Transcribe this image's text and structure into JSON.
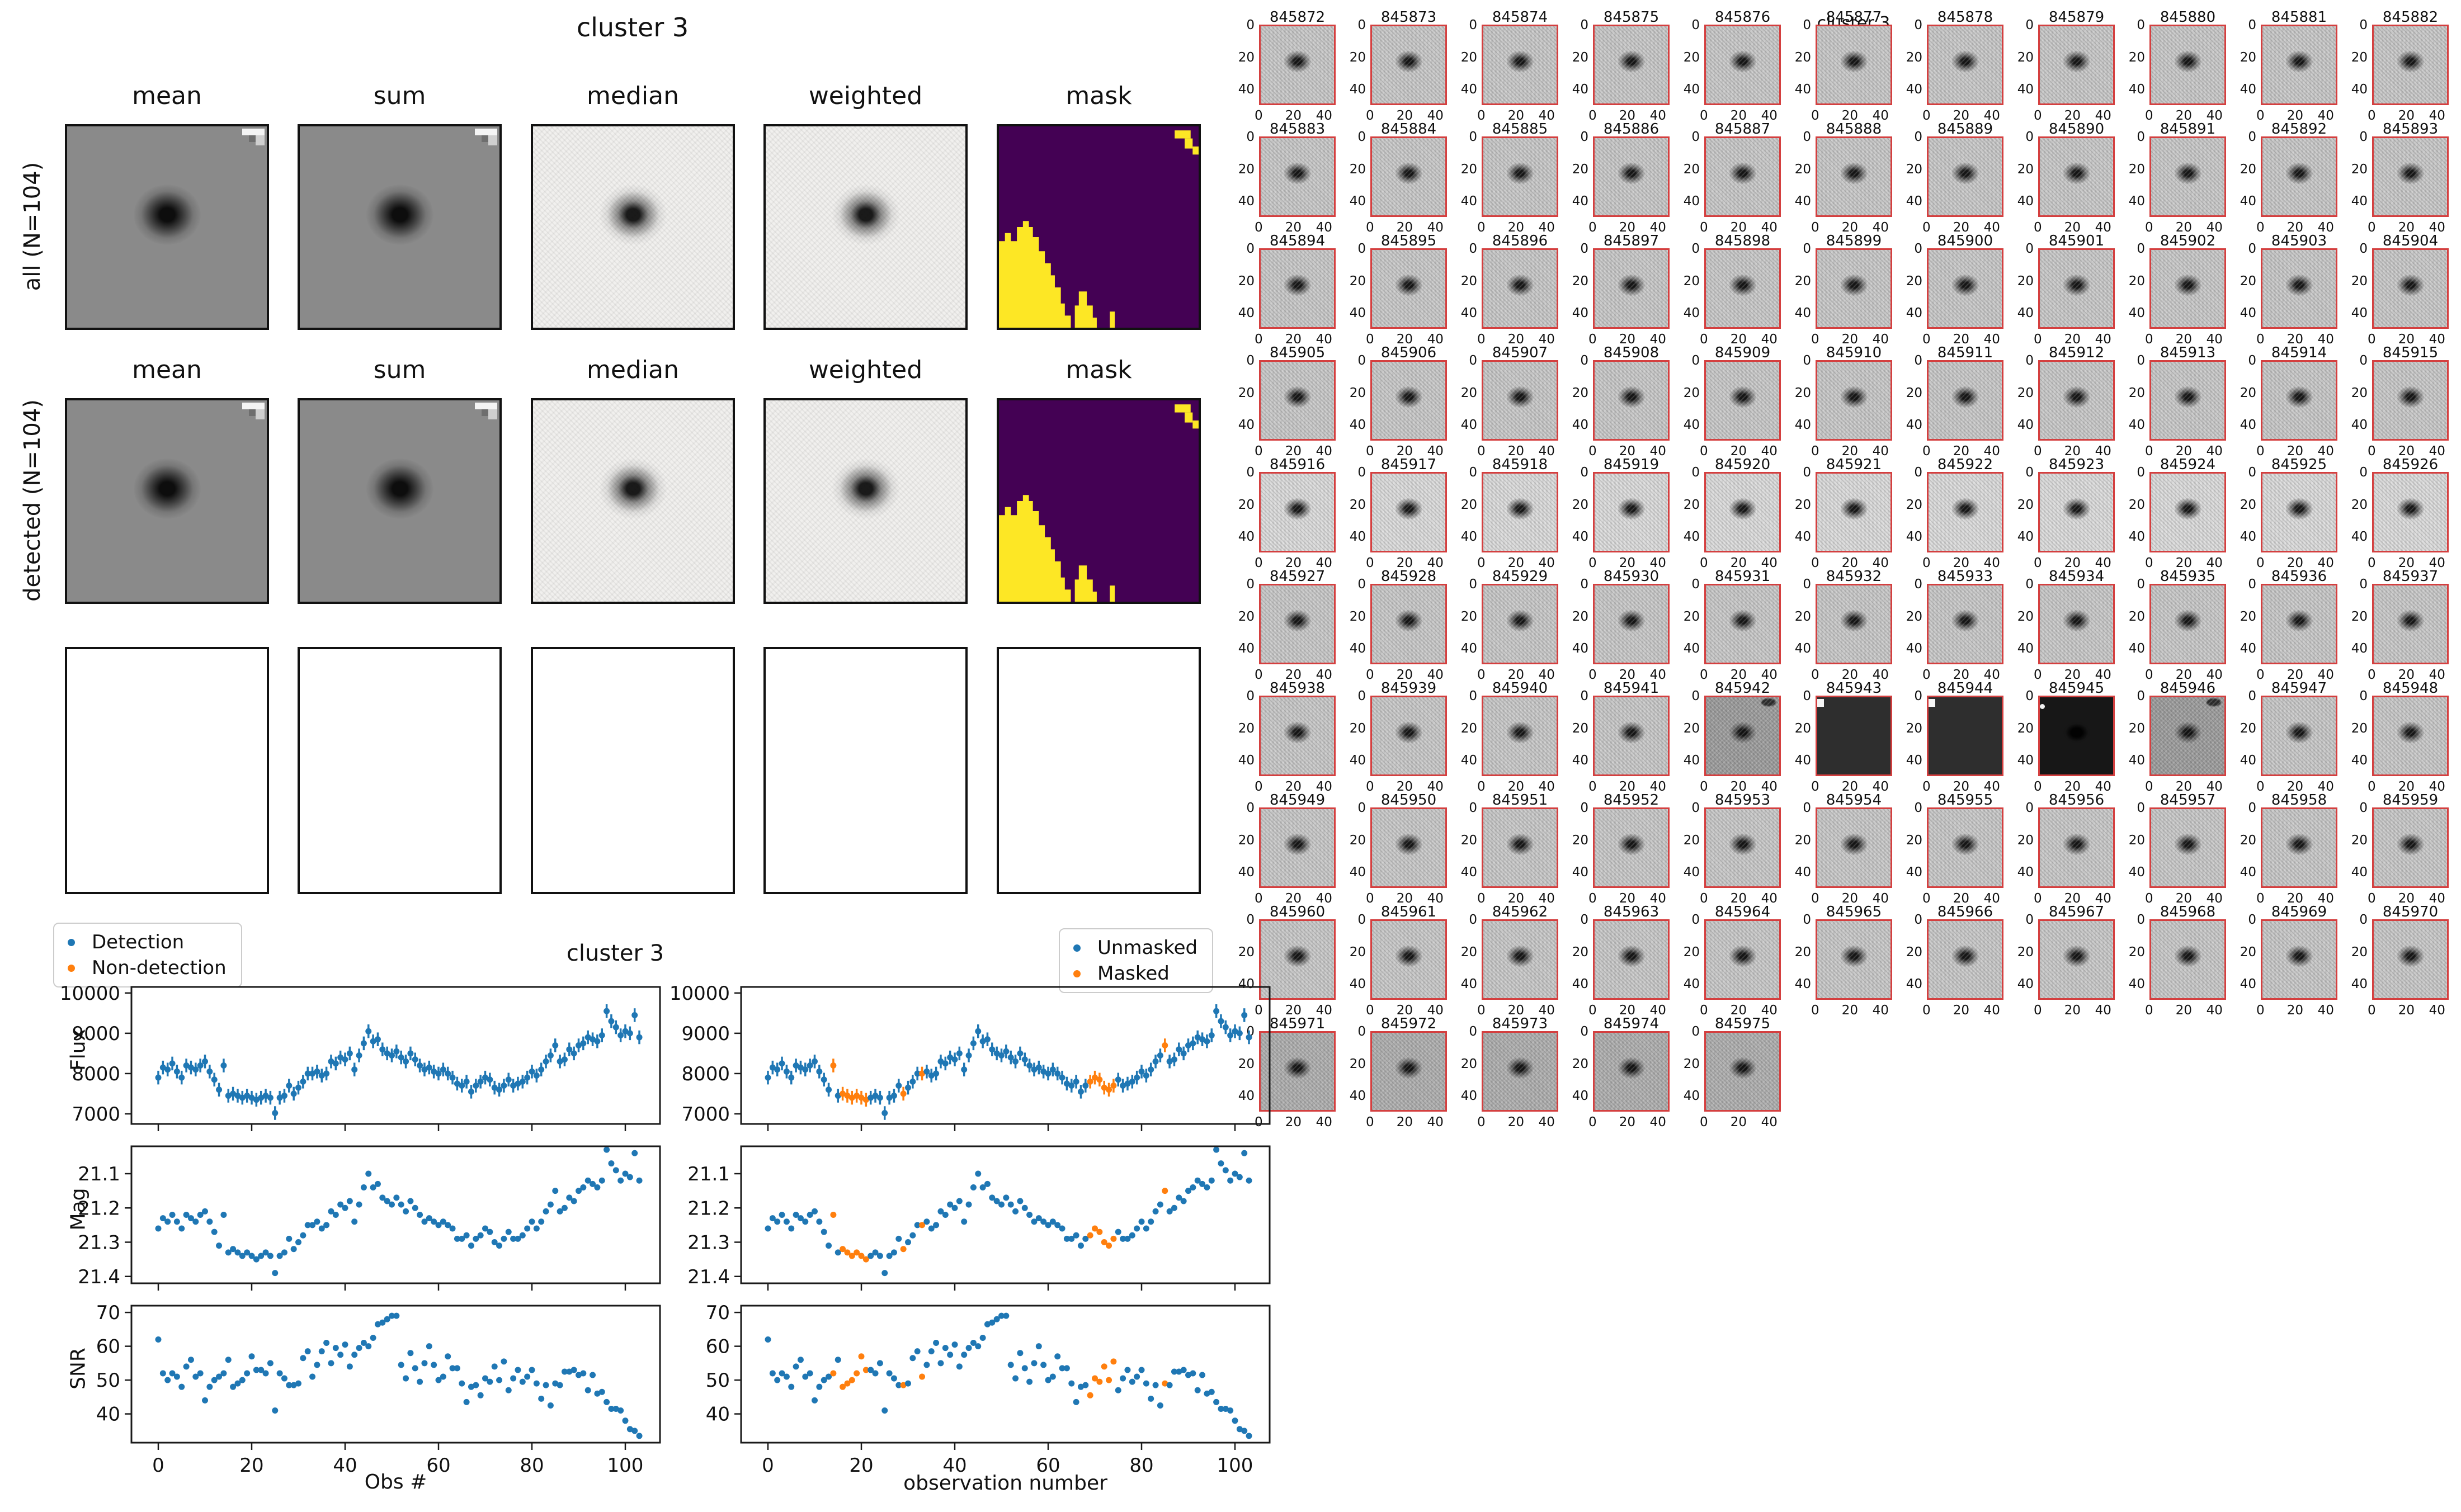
{
  "colors": {
    "detection_blue": "#1f77b4",
    "nondetection_orange": "#ff7f0e",
    "mask_purple": "#440154",
    "mask_yellow": "#fde725",
    "stamp_border_red": "#d43f3f"
  },
  "left_figure": {
    "title": "cluster 3",
    "column_headers": [
      "mean",
      "sum",
      "median",
      "weighted",
      "mask"
    ],
    "row_labels": [
      "all (N=104)",
      "detected (N=104)"
    ],
    "row_cell_types": [
      "gray",
      "gray",
      "light",
      "light",
      "mask"
    ],
    "empty_row_cells": 5
  },
  "right_grid": {
    "suptitle": "cluster 3",
    "xtick_labels": [
      "0",
      "20",
      "40"
    ],
    "ytick_labels": [
      "0",
      "20",
      "40"
    ],
    "stamps": [
      {
        "id": "845872",
        "v": "n"
      },
      {
        "id": "845873",
        "v": "n"
      },
      {
        "id": "845874",
        "v": "n"
      },
      {
        "id": "845875",
        "v": "n"
      },
      {
        "id": "845876",
        "v": "n"
      },
      {
        "id": "845877",
        "v": "n"
      },
      {
        "id": "845878",
        "v": "n"
      },
      {
        "id": "845879",
        "v": "n"
      },
      {
        "id": "845880",
        "v": "n"
      },
      {
        "id": "845881",
        "v": "n"
      },
      {
        "id": "845882",
        "v": "n"
      },
      {
        "id": "845883",
        "v": "n"
      },
      {
        "id": "845884",
        "v": "n"
      },
      {
        "id": "845885",
        "v": "n"
      },
      {
        "id": "845886",
        "v": "n"
      },
      {
        "id": "845887",
        "v": "n"
      },
      {
        "id": "845888",
        "v": "n"
      },
      {
        "id": "845889",
        "v": "n"
      },
      {
        "id": "845890",
        "v": "n"
      },
      {
        "id": "845891",
        "v": "n"
      },
      {
        "id": "845892",
        "v": "n"
      },
      {
        "id": "845893",
        "v": "n"
      },
      {
        "id": "845894",
        "v": "n"
      },
      {
        "id": "845895",
        "v": "n"
      },
      {
        "id": "845896",
        "v": "n"
      },
      {
        "id": "845897",
        "v": "n"
      },
      {
        "id": "845898",
        "v": "n"
      },
      {
        "id": "845899",
        "v": "n"
      },
      {
        "id": "845900",
        "v": "n"
      },
      {
        "id": "845901",
        "v": "n"
      },
      {
        "id": "845902",
        "v": "n"
      },
      {
        "id": "845903",
        "v": "n"
      },
      {
        "id": "845904",
        "v": "n"
      },
      {
        "id": "845905",
        "v": "n"
      },
      {
        "id": "845906",
        "v": "n"
      },
      {
        "id": "845907",
        "v": "n"
      },
      {
        "id": "845908",
        "v": "n"
      },
      {
        "id": "845909",
        "v": "n"
      },
      {
        "id": "845910",
        "v": "n"
      },
      {
        "id": "845911",
        "v": "n"
      },
      {
        "id": "845912",
        "v": "n"
      },
      {
        "id": "845913",
        "v": "n"
      },
      {
        "id": "845914",
        "v": "n"
      },
      {
        "id": "845915",
        "v": "n"
      },
      {
        "id": "845916",
        "v": "l"
      },
      {
        "id": "845917",
        "v": "l"
      },
      {
        "id": "845918",
        "v": "l"
      },
      {
        "id": "845919",
        "v": "l"
      },
      {
        "id": "845920",
        "v": "l"
      },
      {
        "id": "845921",
        "v": "l"
      },
      {
        "id": "845922",
        "v": "l"
      },
      {
        "id": "845923",
        "v": "l"
      },
      {
        "id": "845924",
        "v": "l"
      },
      {
        "id": "845925",
        "v": "l"
      },
      {
        "id": "845926",
        "v": "l"
      },
      {
        "id": "845927",
        "v": "n"
      },
      {
        "id": "845928",
        "v": "n"
      },
      {
        "id": "845929",
        "v": "n"
      },
      {
        "id": "845930",
        "v": "n"
      },
      {
        "id": "845931",
        "v": "n"
      },
      {
        "id": "845932",
        "v": "n"
      },
      {
        "id": "845933",
        "v": "n"
      },
      {
        "id": "845934",
        "v": "n"
      },
      {
        "id": "845935",
        "v": "n"
      },
      {
        "id": "845936",
        "v": "n"
      },
      {
        "id": "845937",
        "v": "n"
      },
      {
        "id": "845938",
        "v": "n"
      },
      {
        "id": "845939",
        "v": "n"
      },
      {
        "id": "845940",
        "v": "n"
      },
      {
        "id": "845941",
        "v": "n"
      },
      {
        "id": "845942",
        "v": "d1"
      },
      {
        "id": "845943",
        "v": "d2"
      },
      {
        "id": "845944",
        "v": "d2"
      },
      {
        "id": "845945",
        "v": "d3"
      },
      {
        "id": "845946",
        "v": "d1"
      },
      {
        "id": "845947",
        "v": "n"
      },
      {
        "id": "845948",
        "v": "n"
      },
      {
        "id": "845949",
        "v": "n"
      },
      {
        "id": "845950",
        "v": "n"
      },
      {
        "id": "845951",
        "v": "n"
      },
      {
        "id": "845952",
        "v": "n"
      },
      {
        "id": "845953",
        "v": "n"
      },
      {
        "id": "845954",
        "v": "n"
      },
      {
        "id": "845955",
        "v": "n"
      },
      {
        "id": "845956",
        "v": "n"
      },
      {
        "id": "845957",
        "v": "n"
      },
      {
        "id": "845958",
        "v": "n"
      },
      {
        "id": "845959",
        "v": "n"
      },
      {
        "id": "845960",
        "v": "n"
      },
      {
        "id": "845961",
        "v": "n"
      },
      {
        "id": "845962",
        "v": "n"
      },
      {
        "id": "845963",
        "v": "n"
      },
      {
        "id": "845964",
        "v": "n"
      },
      {
        "id": "845965",
        "v": "n"
      },
      {
        "id": "845966",
        "v": "n"
      },
      {
        "id": "845967",
        "v": "n"
      },
      {
        "id": "845968",
        "v": "n"
      },
      {
        "id": "845969",
        "v": "n"
      },
      {
        "id": "845970",
        "v": "n"
      },
      {
        "id": "845971",
        "v": "c"
      },
      {
        "id": "845972",
        "v": "c"
      },
      {
        "id": "845973",
        "v": "c"
      },
      {
        "id": "845974",
        "v": "c"
      },
      {
        "id": "845975",
        "v": "c"
      }
    ]
  },
  "timeseries_figure": {
    "title": "cluster 3",
    "xlabel_left": "Obs #",
    "xlabel_right": "observation number",
    "xtick_labels": [
      "0",
      "20",
      "40",
      "60",
      "80",
      "100"
    ],
    "left_legend": [
      {
        "label": "Detection",
        "color": "#1f77b4"
      },
      {
        "label": "Non-detection",
        "color": "#ff7f0e"
      }
    ],
    "right_legend": [
      {
        "label": "Unmasked",
        "color": "#1f77b4"
      },
      {
        "label": "Masked",
        "color": "#ff7f0e"
      }
    ]
  },
  "chart_data": [
    {
      "type": "scatter",
      "title": "cluster 3",
      "ylabel": "Flux",
      "xlabel": "Obs #",
      "x_range": [
        0,
        103
      ],
      "ylim": [
        6750,
        10150
      ],
      "yticks": [
        7000,
        8000,
        9000,
        10000
      ],
      "ytick_labels": [
        "7000",
        "8000",
        "9000",
        "10000"
      ],
      "xticks": [
        0,
        20,
        40,
        60,
        80,
        100
      ],
      "yerr": 170,
      "inverted": false,
      "masked_indices": [
        14,
        16,
        17,
        18,
        19,
        20,
        21,
        29,
        33,
        69,
        70,
        71,
        72,
        73,
        74,
        85
      ],
      "values": [
        7900,
        8150,
        8100,
        8250,
        8050,
        7900,
        8200,
        8150,
        8100,
        8200,
        8300,
        8050,
        7850,
        7600,
        8200,
        7450,
        7500,
        7450,
        7400,
        7450,
        7400,
        7350,
        7400,
        7450,
        7400,
        7020,
        7400,
        7450,
        7700,
        7500,
        7650,
        7800,
        8000,
        8000,
        8050,
        7950,
        8000,
        8300,
        8250,
        8400,
        8350,
        8500,
        8100,
        8450,
        8750,
        9050,
        8800,
        8850,
        8600,
        8500,
        8450,
        8550,
        8400,
        8300,
        8500,
        8350,
        8200,
        8100,
        8150,
        8050,
        8000,
        8100,
        8000,
        7900,
        7750,
        7700,
        7800,
        7550,
        7700,
        7800,
        7900,
        7850,
        7650,
        7600,
        7700,
        7850,
        7700,
        7750,
        7800,
        7900,
        8050,
        7950,
        8100,
        8300,
        8450,
        8700,
        8300,
        8350,
        8600,
        8500,
        8700,
        8750,
        8900,
        8850,
        8800,
        8950,
        9550,
        9300,
        9150,
        8950,
        9050,
        9000,
        9450,
        8900
      ]
    },
    {
      "type": "scatter",
      "ylabel": "Mag",
      "x_range": [
        0,
        103
      ],
      "ylim": [
        21.02,
        21.42
      ],
      "yticks": [
        21.1,
        21.2,
        21.3,
        21.4
      ],
      "ytick_labels": [
        "21.1",
        "21.2",
        "21.3",
        "21.4"
      ],
      "xticks": [
        0,
        20,
        40,
        60,
        80,
        100
      ],
      "yerr": 0,
      "inverted": true,
      "masked_indices": [
        14,
        16,
        17,
        18,
        19,
        20,
        21,
        29,
        33,
        69,
        70,
        71,
        72,
        73,
        74,
        85
      ],
      "values": [
        21.26,
        21.23,
        21.24,
        21.22,
        21.24,
        21.26,
        21.22,
        21.23,
        21.24,
        21.22,
        21.21,
        21.24,
        21.27,
        21.31,
        21.22,
        21.33,
        21.32,
        21.33,
        21.34,
        21.33,
        21.34,
        21.35,
        21.34,
        21.33,
        21.34,
        21.39,
        21.34,
        21.33,
        21.29,
        21.32,
        21.3,
        21.28,
        21.25,
        21.25,
        21.24,
        21.26,
        21.25,
        21.21,
        21.22,
        21.19,
        21.2,
        21.18,
        21.24,
        21.19,
        21.14,
        21.1,
        21.14,
        21.13,
        21.17,
        21.18,
        21.19,
        21.17,
        21.19,
        21.21,
        21.18,
        21.2,
        21.22,
        21.24,
        21.23,
        21.24,
        21.25,
        21.24,
        21.25,
        21.26,
        21.29,
        21.29,
        21.28,
        21.31,
        21.29,
        21.28,
        21.26,
        21.27,
        21.3,
        21.31,
        21.29,
        21.27,
        21.29,
        21.29,
        21.28,
        21.26,
        21.24,
        21.26,
        21.24,
        21.21,
        21.19,
        21.15,
        21.21,
        21.2,
        21.17,
        21.18,
        21.15,
        21.14,
        21.12,
        21.13,
        21.14,
        21.12,
        21.03,
        21.07,
        21.09,
        21.12,
        21.1,
        21.11,
        21.04,
        21.12
      ]
    },
    {
      "type": "scatter",
      "ylabel": "SNR",
      "x_range": [
        0,
        103
      ],
      "ylim": [
        31.5,
        72
      ],
      "yticks": [
        40,
        50,
        60,
        70
      ],
      "ytick_labels": [
        "40",
        "50",
        "60",
        "70"
      ],
      "xticks": [
        0,
        20,
        40,
        60,
        80,
        100
      ],
      "yerr": 0,
      "inverted": false,
      "masked_indices": [
        14,
        16,
        17,
        18,
        19,
        20,
        21,
        29,
        33,
        69,
        70,
        71,
        72,
        73,
        74,
        85
      ],
      "values": [
        62,
        52,
        50,
        52,
        51,
        48,
        54,
        56,
        51,
        52,
        44,
        48,
        50,
        51,
        52,
        56,
        48,
        49,
        50,
        52,
        57,
        53,
        53,
        52,
        55,
        41,
        52,
        50.5,
        48.5,
        48.5,
        49,
        56.5,
        58.5,
        51,
        54.5,
        58.5,
        61,
        55,
        59.5,
        57.5,
        60.5,
        54,
        57.5,
        59.5,
        61,
        60,
        62.5,
        66.5,
        67,
        68,
        69,
        69,
        54.5,
        50.5,
        58,
        53.5,
        49.5,
        55,
        60,
        54.5,
        50,
        51,
        57,
        53.5,
        53.5,
        49,
        43.5,
        48,
        48.5,
        45.5,
        50.5,
        49.5,
        54,
        50,
        55.5,
        47,
        50.5,
        53,
        49.5,
        51,
        53,
        49,
        44.5,
        48.5,
        42.5,
        49,
        48.5,
        52.5,
        52.5,
        53,
        51.5,
        52,
        47,
        51.5,
        46,
        46.5,
        43.5,
        41.5,
        41.5,
        41,
        38,
        35.5,
        35,
        33.5
      ]
    }
  ]
}
